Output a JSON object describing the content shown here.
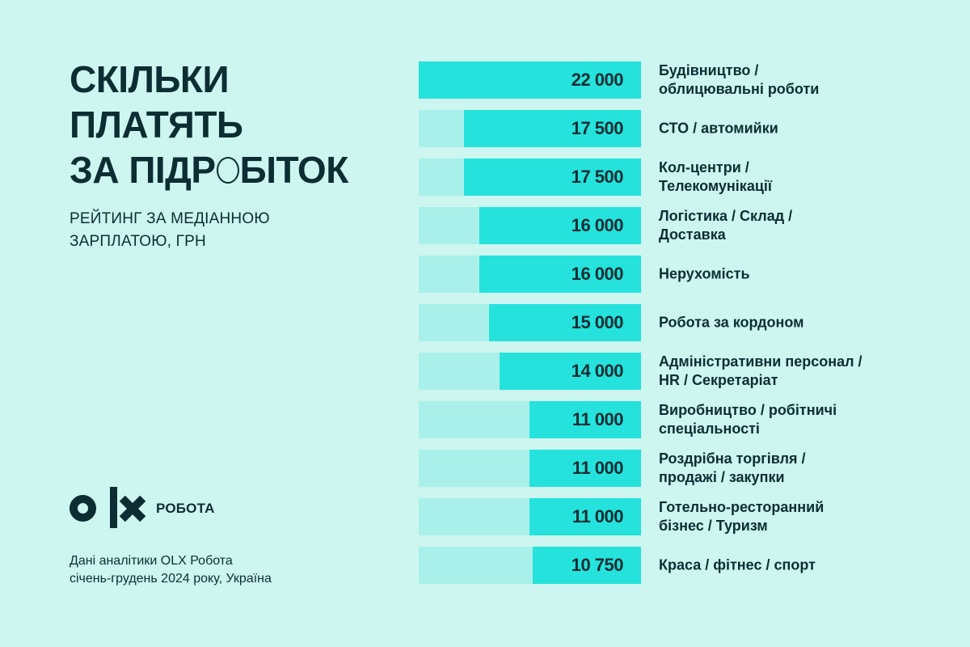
{
  "colors": {
    "background": "#ccf6ef",
    "track": "#a9f0ea",
    "bar": "#26e2dc",
    "text": "#0c2e33"
  },
  "header": {
    "title_lines": [
      "СКІЛЬКИ",
      "ПЛАТЯТЬ",
      "ЗА ПІДР",
      "БІТОК"
    ],
    "title_full": "СКІЛЬКИ ПЛАТЯТЬ ЗА ПІДРОБІТОК",
    "subtitle_lines": [
      "РЕЙТИНГ ЗА МЕДІАННОЮ",
      "ЗАРПЛАТОЮ, ГРН"
    ]
  },
  "logo": {
    "mark": "OLX",
    "brand": "РОБОТА"
  },
  "source": {
    "lines": [
      "Дані аналітики OLX Робота",
      "січень-грудень 2024 року, Україна"
    ]
  },
  "chart_data": {
    "type": "bar",
    "orientation": "horizontal",
    "title": "Скільки платять за підробіток",
    "subtitle": "Рейтинг за медіанною зарплатою, грн",
    "xlabel": "",
    "ylabel": "",
    "unit": "грн",
    "xlim": [
      0,
      22000
    ],
    "grid": false,
    "legend": null,
    "categories": [
      "Будівництво / облицювальні роботи",
      "СТО / автомийки",
      "Кол-центри / Телекомунікації",
      "Логістика / Склад / Доставка",
      "Нерухомість",
      "Робота за кордоном",
      "Адміністративни персонал / HR / Секретаріат",
      "Виробництво / робітничі спеціальності",
      "Роздрібна торгівля / продажі / закупки",
      "Готельно-ресторанний бізнес / Туризм",
      "Краса / фітнес / спорт"
    ],
    "values": [
      22000,
      17500,
      17500,
      16000,
      16000,
      15000,
      14000,
      11000,
      11000,
      11000,
      10750
    ],
    "value_labels": [
      "22 000",
      "17 500",
      "17 500",
      "16 000",
      "16 000",
      "15 000",
      "14 000",
      "11 000",
      "11 000",
      "11 000",
      "10 750"
    ],
    "label_lines": [
      [
        "Будівництво /",
        "облицювальні роботи"
      ],
      [
        "СТО / автомийки"
      ],
      [
        "Кол-центри /",
        "Телекомунікації"
      ],
      [
        "Логістика / Склад /",
        "Доставка"
      ],
      [
        "Нерухомість"
      ],
      [
        "Робота за кордоном"
      ],
      [
        "Адміністративни персонал /",
        "HR / Секретаріат"
      ],
      [
        "Виробництво / робітничі",
        "спеціальності"
      ],
      [
        "Роздрібна торгівля /",
        "продажі / закупки"
      ],
      [
        "Готельно-ресторанний",
        "бізнес / Туризм"
      ],
      [
        "Краса / фітнес / спорт"
      ]
    ],
    "source": "Дані аналітики OLX Робота, січень-грудень 2024 року, Україна"
  }
}
